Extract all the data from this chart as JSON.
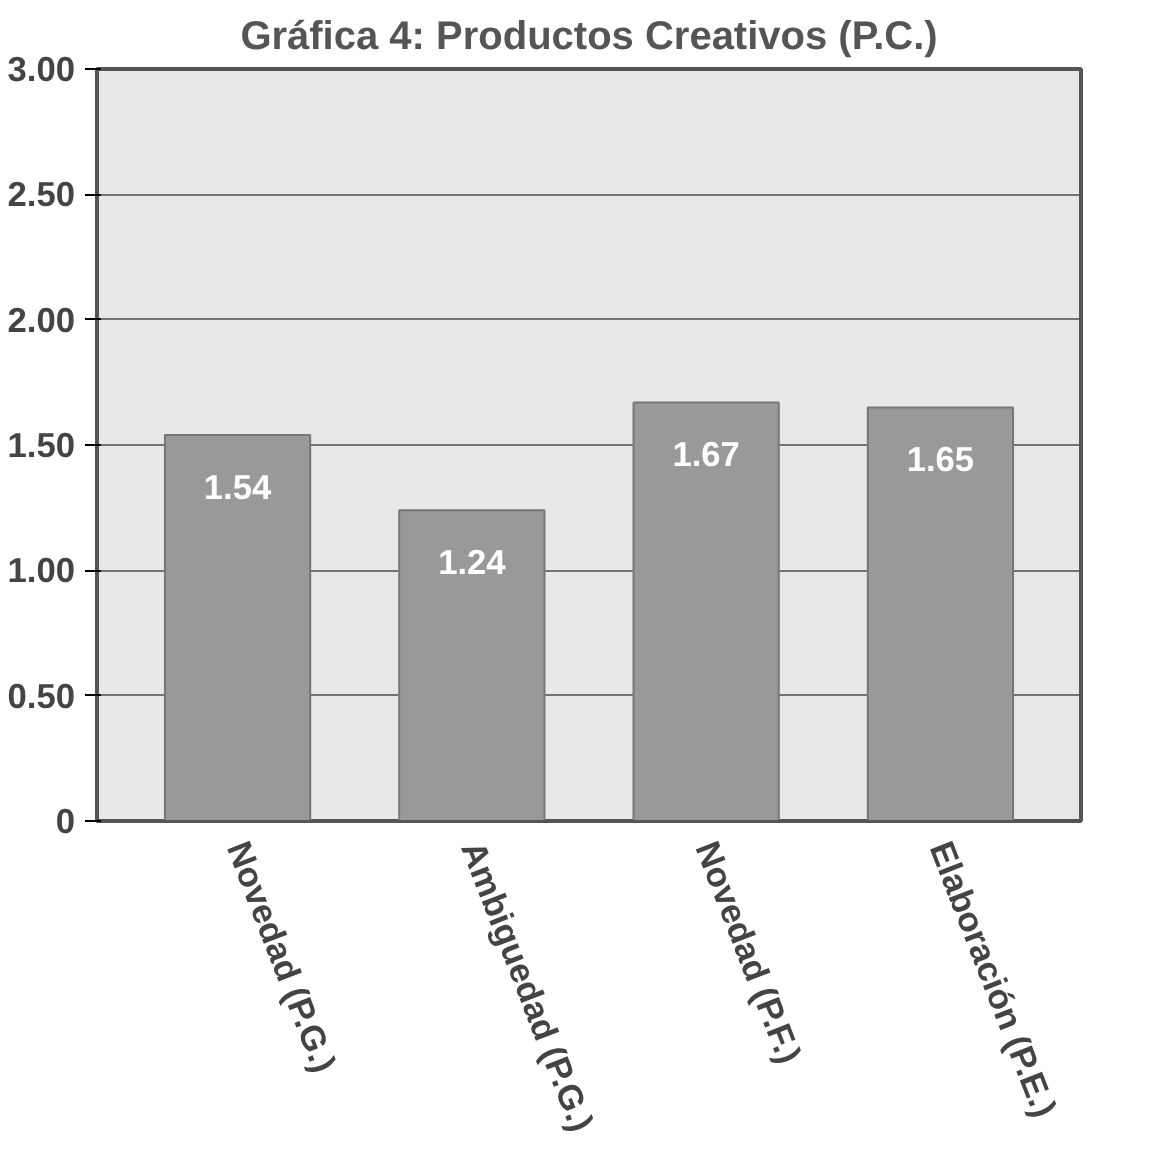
{
  "chart_data": {
    "type": "bar",
    "title": "Gráfica 4: Productos Creativos (P.C.)",
    "categories": [
      "Novedad (P.G.)",
      "Ambiguedad (P.G.)",
      "Novedad (P.F.)",
      "Elaboración (P.E.)"
    ],
    "values": [
      1.54,
      1.24,
      1.67,
      1.65
    ],
    "color": "#999999",
    "ylim": [
      0,
      3
    ],
    "yticks": [
      {
        "value": 0,
        "label": "0"
      },
      {
        "value": 0.5,
        "label": "0.50"
      },
      {
        "value": 1,
        "label": "1.00"
      },
      {
        "value": 1.5,
        "label": "1.50"
      },
      {
        "value": 2,
        "label": "2.00"
      },
      {
        "value": 2.5,
        "label": "2.50"
      },
      {
        "value": 3,
        "label": "3.00"
      }
    ],
    "grid": "y",
    "data_labels": true
  }
}
